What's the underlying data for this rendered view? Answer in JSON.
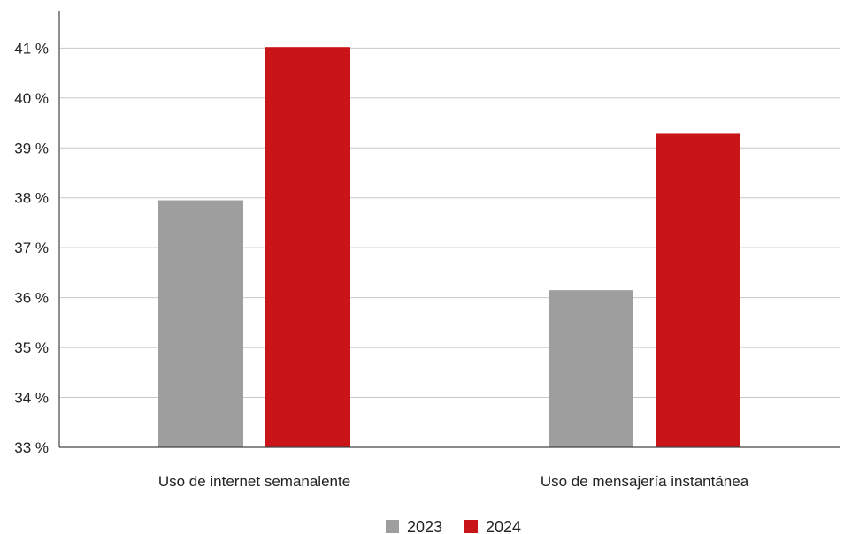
{
  "chart_data": {
    "type": "bar",
    "categories": [
      "Uso de internet semanalente",
      "Uso de mensajería instantánea"
    ],
    "series": [
      {
        "name": "2023",
        "values": [
          37.95,
          36.15
        ],
        "color": "#9e9e9e"
      },
      {
        "name": "2024",
        "values": [
          41.02,
          39.28
        ],
        "color": "#c91517"
      }
    ],
    "y_ticks": [
      33,
      34,
      35,
      36,
      37,
      38,
      39,
      40,
      41
    ],
    "y_tick_labels": [
      "33 %",
      "34 %",
      "35 %",
      "36 %",
      "37 %",
      "38 %",
      "39 %",
      "40 %",
      "41 %"
    ],
    "ylim": [
      33,
      41.75
    ],
    "grid": true,
    "legend_position": "bottom-center",
    "title": "",
    "xlabel": "",
    "ylabel": ""
  }
}
